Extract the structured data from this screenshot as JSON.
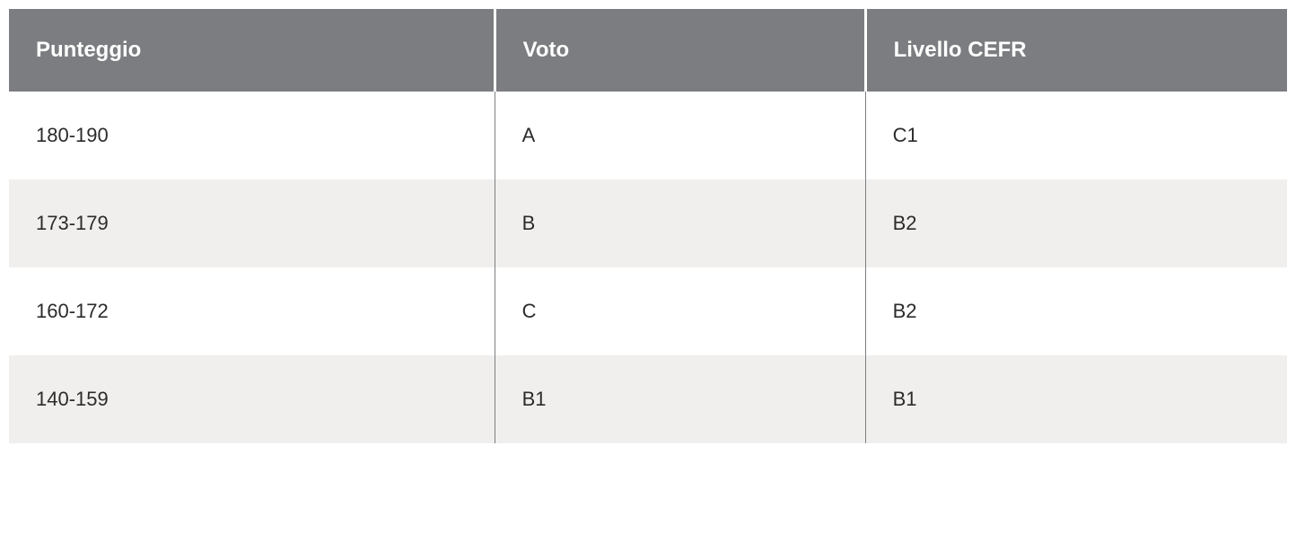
{
  "table": {
    "type": "table",
    "background_color": "#ffffff",
    "header": {
      "bg_color": "#7b7d80",
      "text_color": "#ffffff",
      "font_weight": 700,
      "font_size_pt": 18,
      "cell_separator_color": "#ffffff"
    },
    "body": {
      "text_color": "#2b2b2b",
      "font_size_pt": 16,
      "row_bg_odd": "#ffffff",
      "row_bg_even": "#f1efed",
      "cell_separator_color": "#7b7d80"
    },
    "columns": [
      {
        "key": "punteggio",
        "label": "Punteggio",
        "width_pct": 38,
        "align": "left"
      },
      {
        "key": "voto",
        "label": "Voto",
        "width_pct": 29,
        "align": "left"
      },
      {
        "key": "cefr",
        "label": "Livello CEFR",
        "width_pct": 33,
        "align": "left"
      }
    ],
    "rows": [
      {
        "punteggio": "180-190",
        "voto": "A",
        "cefr": "C1"
      },
      {
        "punteggio": "173-179",
        "voto": "B",
        "cefr": "B2"
      },
      {
        "punteggio": "160-172",
        "voto": "C",
        "cefr": "B2"
      },
      {
        "punteggio": "140-159",
        "voto": "B1",
        "cefr": "B1"
      }
    ]
  }
}
